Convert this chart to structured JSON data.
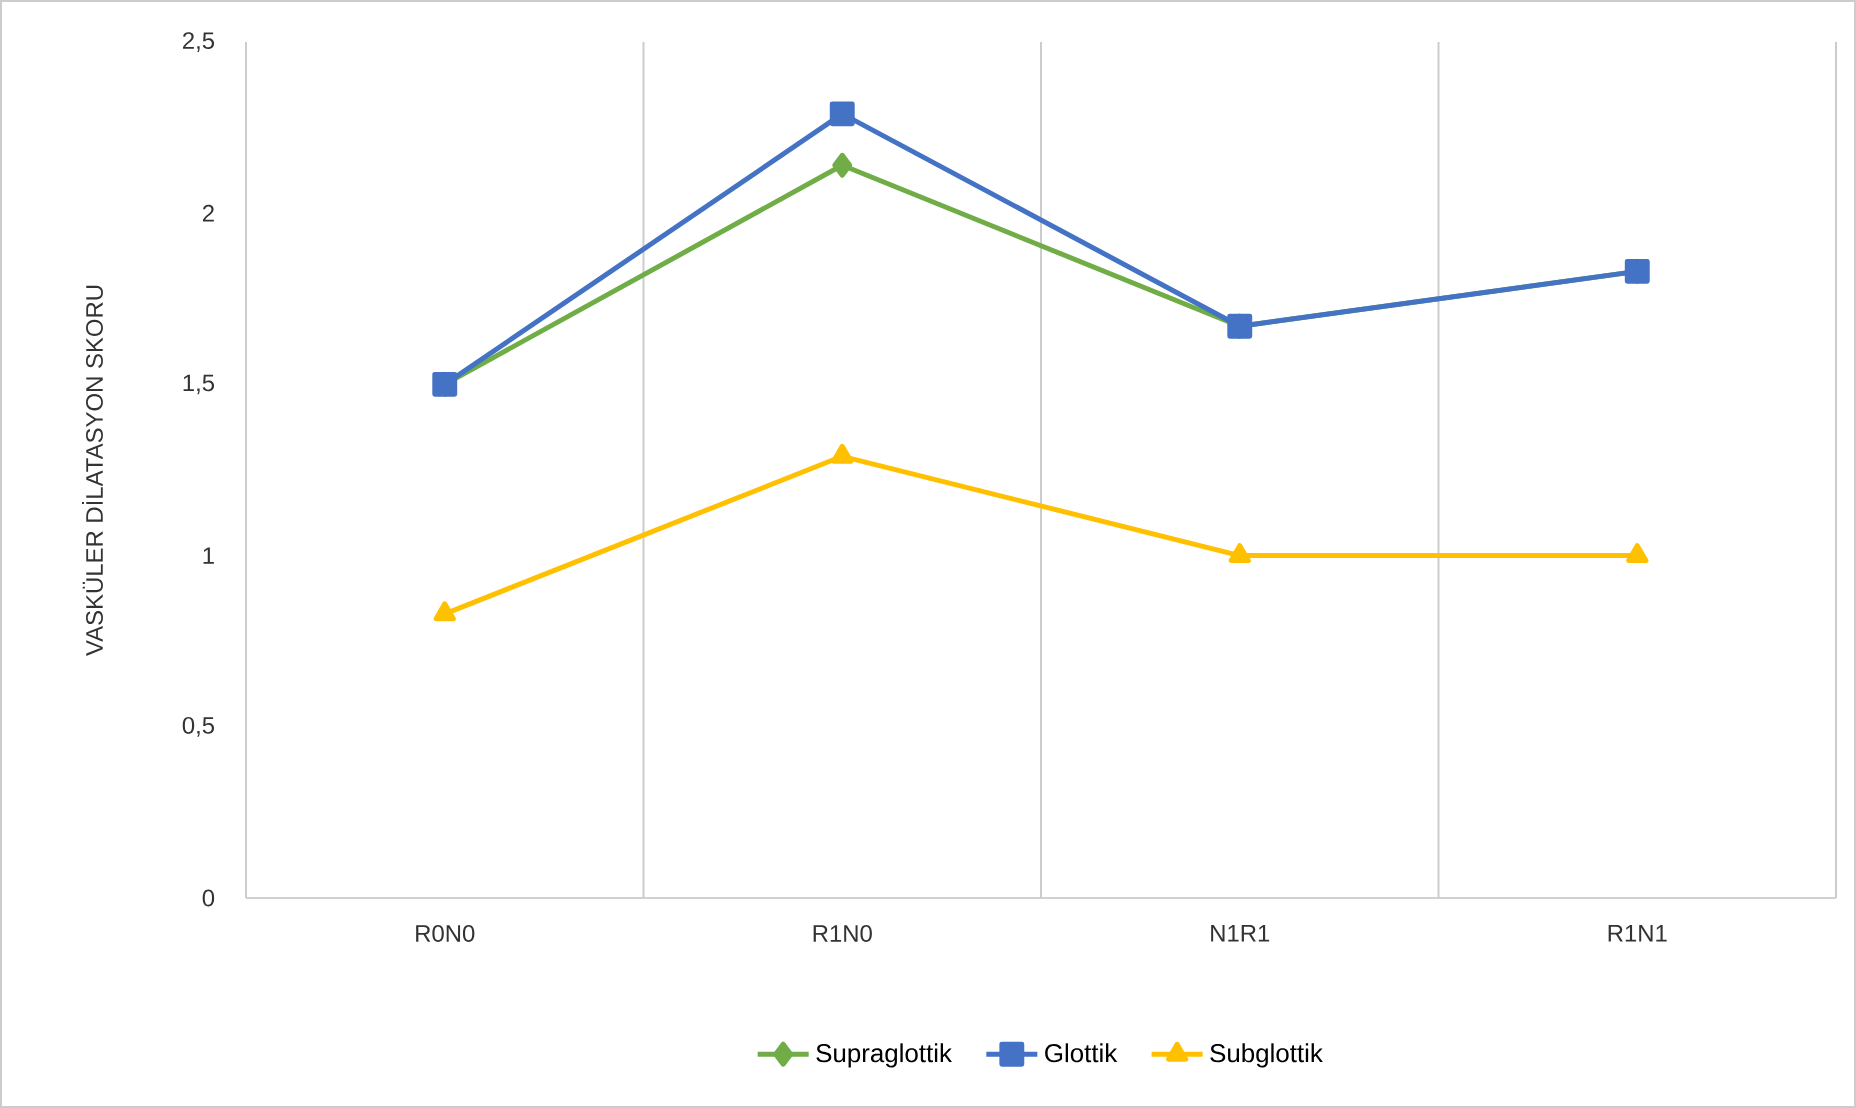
{
  "chart_data": {
    "type": "line",
    "categories": [
      "R0N0",
      "R1N0",
      "N1R1",
      "R1N1"
    ],
    "ylabel": "VASKÜLER DİLATASYON SKORU",
    "ylim": [
      0,
      2.5
    ],
    "yticks": [
      {
        "value": 0,
        "label": "0"
      },
      {
        "value": 0.5,
        "label": "0,5"
      },
      {
        "value": 1,
        "label": "1"
      },
      {
        "value": 1.5,
        "label": "1,5"
      },
      {
        "value": 2,
        "label": "2"
      },
      {
        "value": 2.5,
        "label": "2,5"
      }
    ],
    "grid": "x",
    "legend": "bottom",
    "line_style": "solid",
    "series": [
      {
        "name": "Supraglottik",
        "color": "#70ad47",
        "marker": "diamond",
        "values": [
          1.5,
          2.14,
          1.67,
          1.83
        ]
      },
      {
        "name": "Glottik",
        "color": "#4472c4",
        "marker": "square",
        "values": [
          1.5,
          2.29,
          1.67,
          1.83
        ]
      },
      {
        "name": "Subglottik",
        "color": "#ffc000",
        "marker": "triangle",
        "values": [
          0.83,
          1.29,
          1.0,
          1.0
        ]
      }
    ]
  }
}
